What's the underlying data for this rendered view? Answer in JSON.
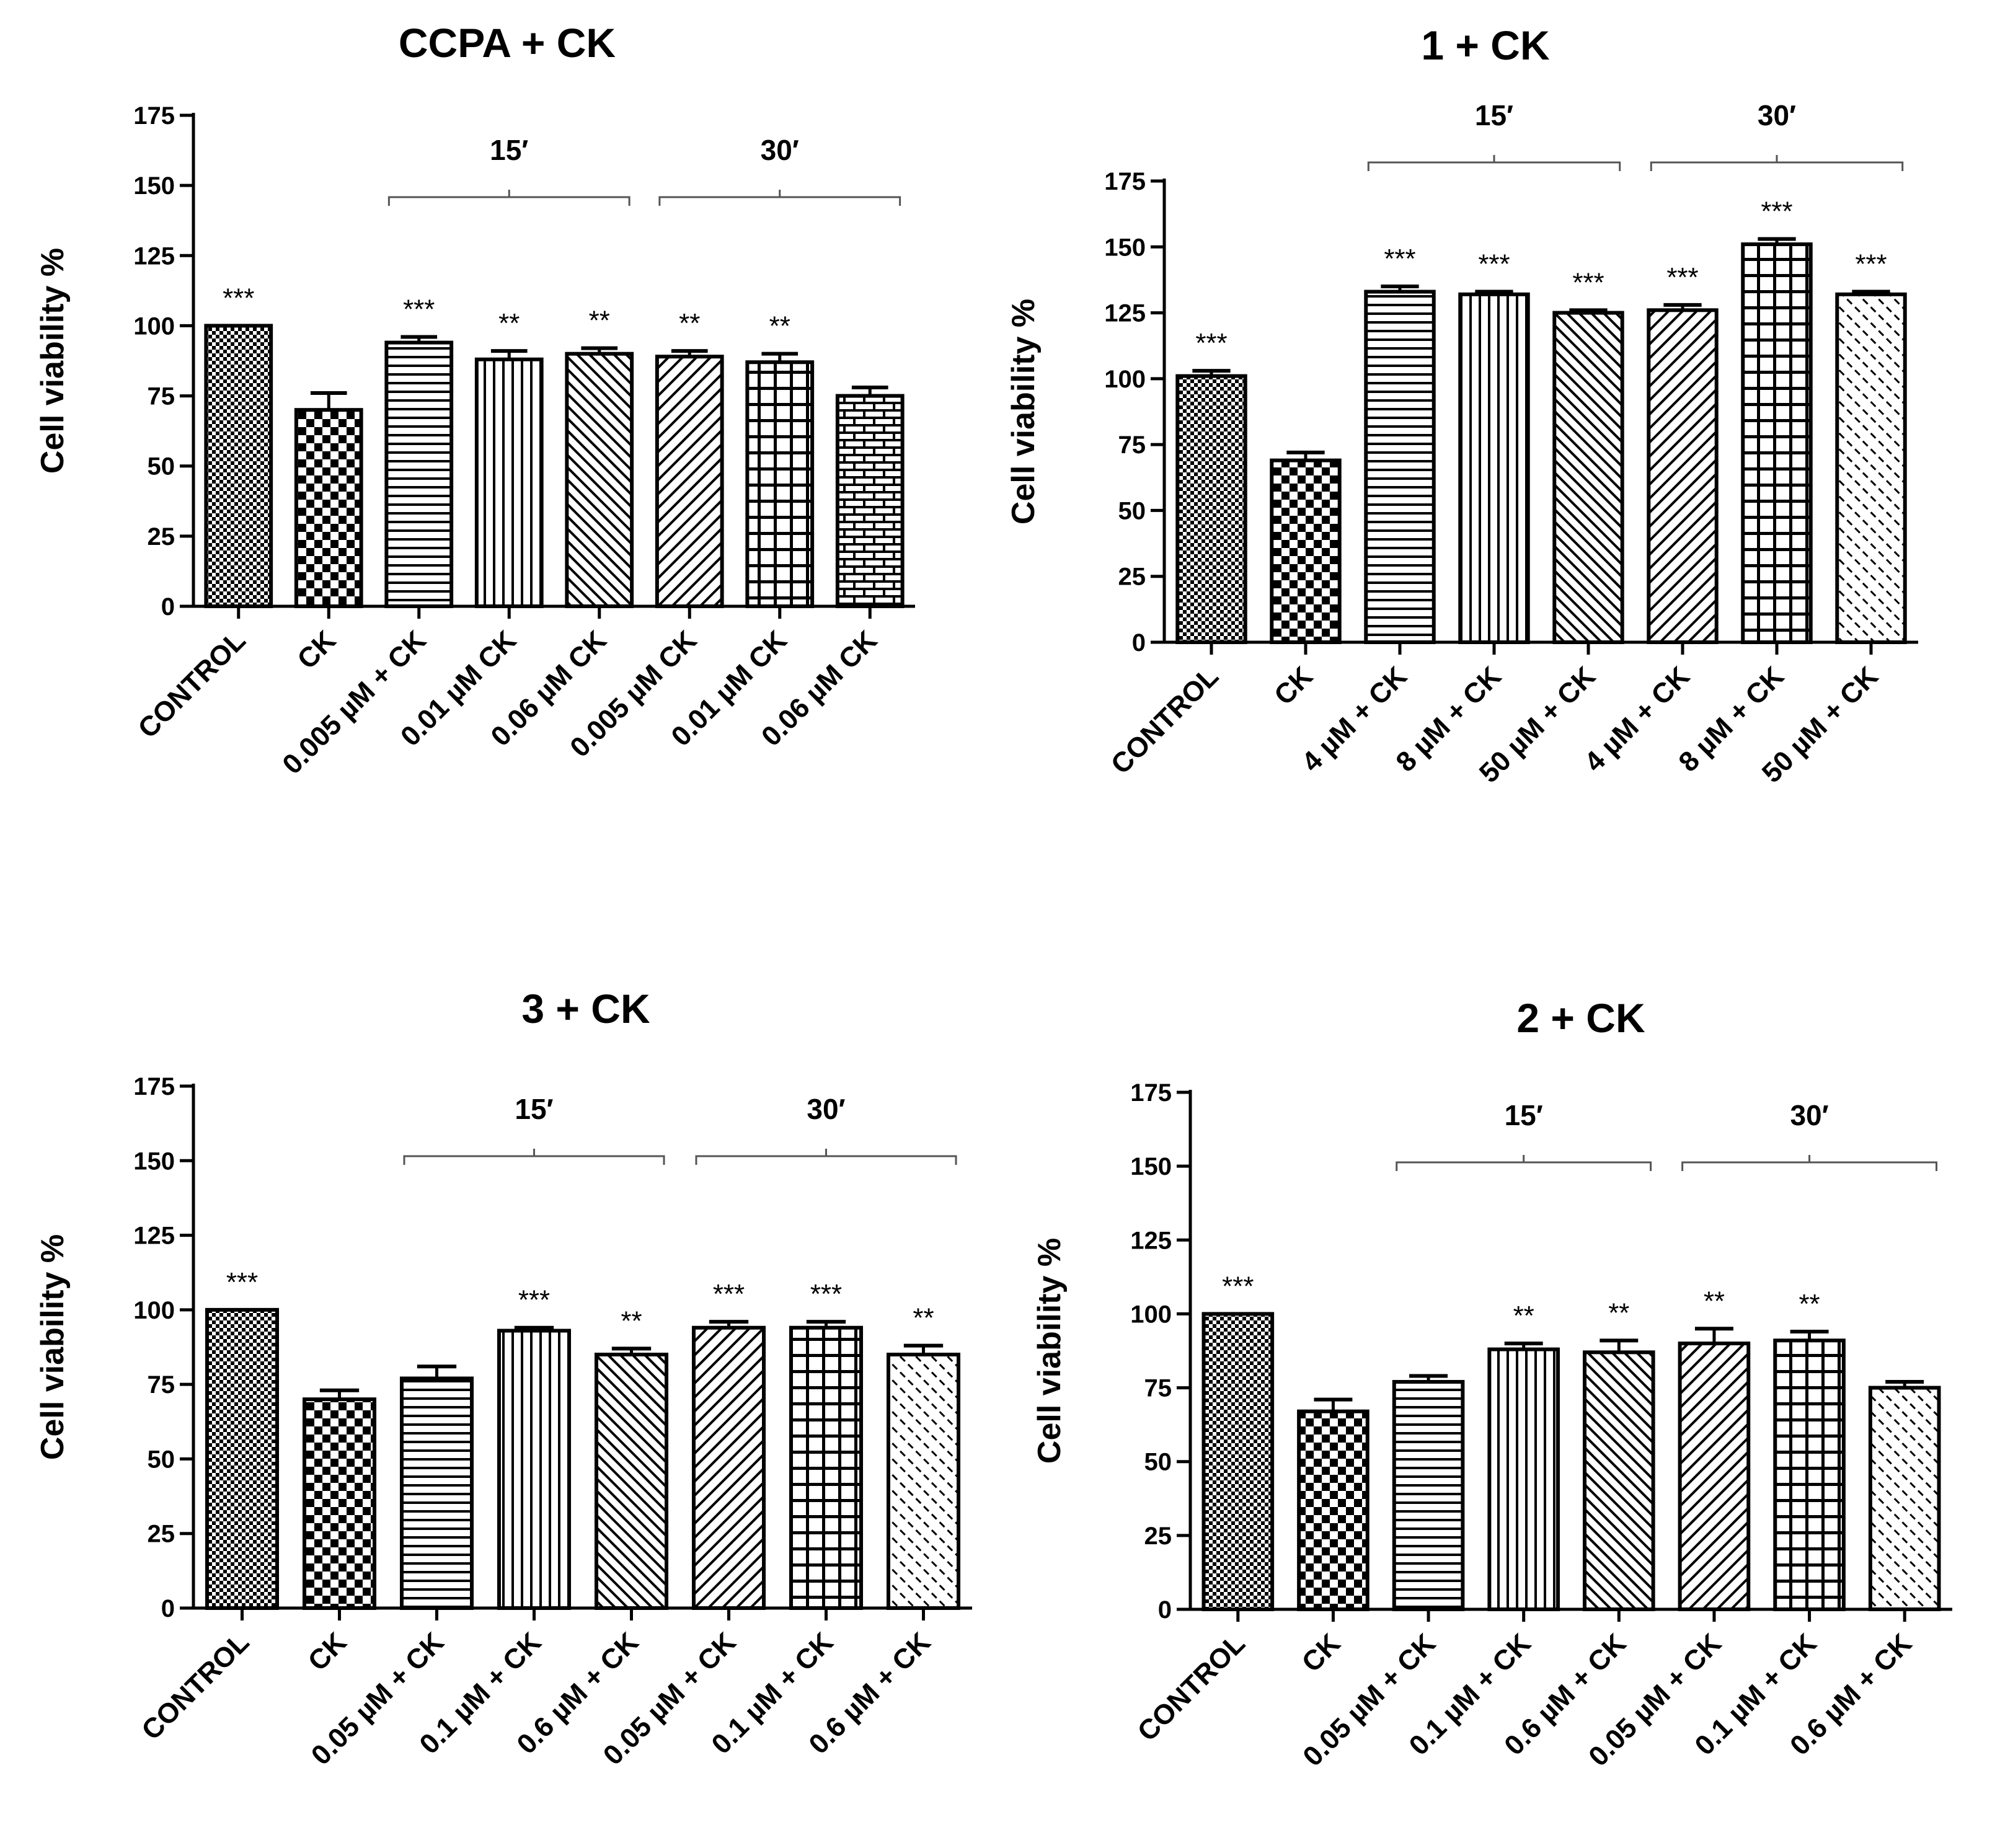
{
  "chart_data": [
    {
      "type": "bar",
      "title": "CCPA + CK",
      "ylabel": "Cell viability %",
      "xlabel": "",
      "ylim": [
        0,
        175
      ],
      "yticks": [
        0,
        25,
        50,
        75,
        100,
        125,
        150,
        175
      ],
      "categories": [
        "CONTROL",
        "CK",
        "0.005 µM + CK",
        "0.01 µM CK",
        "0.06 µM CK",
        "0.005 µM CK",
        "0.01 µM CK",
        "0.06 µM CK"
      ],
      "values": [
        100,
        70,
        94,
        88,
        90,
        89,
        87,
        75
      ],
      "errors": [
        0,
        6,
        2,
        3,
        2,
        2,
        3,
        3
      ],
      "significance": [
        "***",
        "",
        "***",
        "**",
        "**",
        "**",
        "**",
        ""
      ],
      "patterns": [
        "check-fine",
        "check-large",
        "hlines",
        "vlines",
        "diag-fine",
        "diag-back",
        "grid",
        "brick"
      ],
      "groups": [
        {
          "label": "15′",
          "from": 2,
          "to": 4
        },
        {
          "label": "30′",
          "from": 5,
          "to": 7
        }
      ]
    },
    {
      "type": "bar",
      "title": "1 + CK",
      "ylabel": "Cell viability %",
      "xlabel": "",
      "ylim": [
        0,
        175
      ],
      "yticks": [
        0,
        25,
        50,
        75,
        100,
        125,
        150,
        175
      ],
      "categories": [
        "CONTROL",
        "CK",
        "4  µM + CK",
        "8  µM + CK",
        "50  µM + CK",
        "4  µM + CK",
        "8  µM + CK",
        "50  µM + CK"
      ],
      "values": [
        101,
        69,
        133,
        132,
        125,
        126,
        151,
        132
      ],
      "errors": [
        2,
        3,
        2,
        1,
        1,
        2,
        2,
        1
      ],
      "significance": [
        "***",
        "",
        "***",
        "***",
        "***",
        "***",
        "***",
        "***"
      ],
      "patterns": [
        "check-fine",
        "check-large",
        "hlines",
        "vlines",
        "diag-fine",
        "diag-back",
        "grid",
        "diag-dash"
      ],
      "groups": [
        {
          "label": "15′",
          "from": 2,
          "to": 4
        },
        {
          "label": "30′",
          "from": 5,
          "to": 7
        }
      ]
    },
    {
      "type": "bar",
      "title": "3 + CK",
      "ylabel": "Cell viability %",
      "xlabel": "",
      "ylim": [
        0,
        175
      ],
      "yticks": [
        0,
        25,
        50,
        75,
        100,
        125,
        150,
        175
      ],
      "categories": [
        "CONTROL",
        "CK",
        "0.05  µM + CK",
        "0.1  µM + CK",
        "0.6  µM + CK",
        "0.05  µM + CK",
        "0.1  µM + CK",
        "0.6  µM + CK"
      ],
      "values": [
        100,
        70,
        77,
        93,
        85,
        94,
        94,
        85
      ],
      "errors": [
        0,
        3,
        4,
        1,
        2,
        2,
        2,
        3
      ],
      "significance": [
        "***",
        "",
        "",
        "***",
        "**",
        "***",
        "***",
        "**"
      ],
      "patterns": [
        "check-fine",
        "check-large",
        "hlines",
        "vlines",
        "diag-fine",
        "diag-back",
        "grid",
        "diag-dash"
      ],
      "groups": [
        {
          "label": "15′",
          "from": 2,
          "to": 4
        },
        {
          "label": "30′",
          "from": 5,
          "to": 7
        }
      ]
    },
    {
      "type": "bar",
      "title": "2 + CK",
      "ylabel": "Cell viability %",
      "xlabel": "",
      "ylim": [
        0,
        175
      ],
      "yticks": [
        0,
        25,
        50,
        75,
        100,
        125,
        150,
        175
      ],
      "categories": [
        "CONTROL",
        "CK",
        "0.05  µM + CK",
        "0.1  µM + CK",
        "0.6  µM + CK",
        "0.05  µM + CK",
        "0.1  µM + CK",
        "0.6  µM + CK"
      ],
      "values": [
        100,
        67,
        77,
        88,
        87,
        90,
        91,
        75
      ],
      "errors": [
        0,
        4,
        2,
        2,
        4,
        5,
        3,
        2
      ],
      "significance": [
        "***",
        "",
        "",
        "**",
        "**",
        "**",
        "**",
        ""
      ],
      "patterns": [
        "check-fine",
        "check-large",
        "hlines",
        "vlines",
        "diag-fine",
        "diag-back",
        "grid",
        "diag-dash"
      ],
      "groups": [
        {
          "label": "15′",
          "from": 2,
          "to": 4
        },
        {
          "label": "30′",
          "from": 5,
          "to": 7
        }
      ]
    }
  ]
}
